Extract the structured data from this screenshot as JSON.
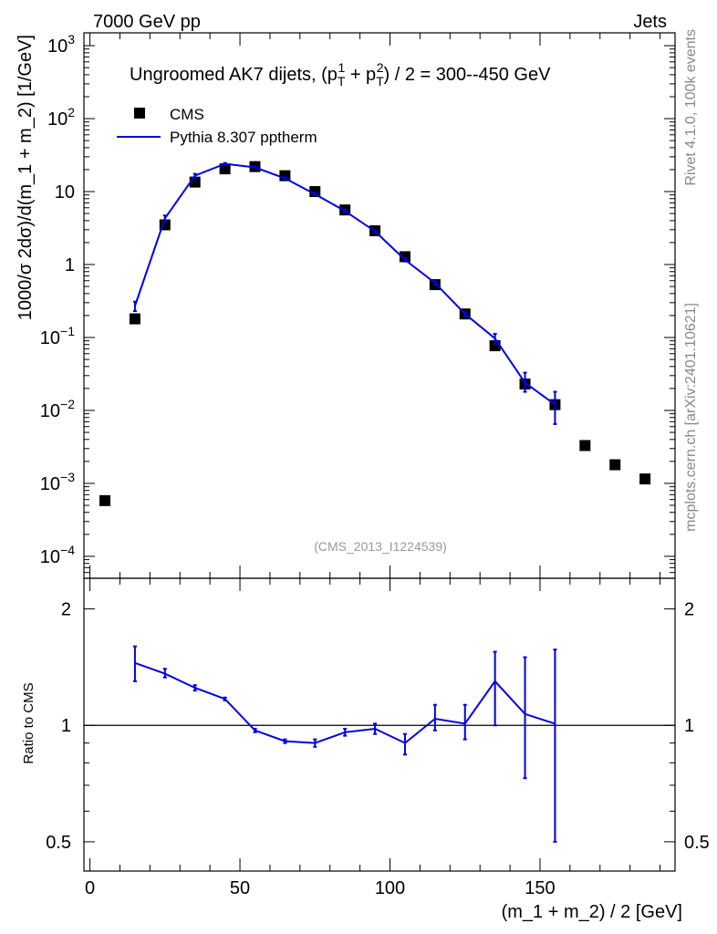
{
  "header": {
    "energy": "7000 GeV pp",
    "category": "Jets"
  },
  "side": {
    "rivet": "Rivet 4.1.0,  100k events",
    "source": "mcplots.cern.ch [arXiv:2401.10621]"
  },
  "chart_data": [
    {
      "type": "scatter",
      "panel": "main",
      "title": "Ungroomed AK7 dijets, (p_T^1 + p_T^2) / 2 = 300--450 GeV",
      "title_prefix": "Ungroomed AK7 dijets, (p",
      "title_sub1": "T",
      "title_sup1": "1",
      "title_mid": " + p",
      "title_sub2": "T",
      "title_sup2": "2",
      "title_suffix": ") / 2 = 300--450 GeV",
      "ylabel": "1000/σ   2dσ)/d(m_1 + m_2) [1/GeV]",
      "yscale": "log",
      "ylim": [
        5e-05,
        1500
      ],
      "xlim": [
        -2,
        195
      ],
      "analysis_id": "(CMS_2013_I1224539)",
      "legend": [
        "CMS",
        "Pythia 8.307 pptherm"
      ],
      "y_ticks": [
        {
          "value": 0.0001,
          "base": "10",
          "exp": "−4"
        },
        {
          "value": 0.001,
          "base": "10",
          "exp": "−3"
        },
        {
          "value": 0.01,
          "base": "10",
          "exp": "−2"
        },
        {
          "value": 0.1,
          "base": "10",
          "exp": "−1"
        },
        {
          "value": 1,
          "base": "1",
          "exp": ""
        },
        {
          "value": 10,
          "base": "10",
          "exp": ""
        },
        {
          "value": 100,
          "base": "10",
          "exp": "2"
        },
        {
          "value": 1000,
          "base": "10",
          "exp": "3"
        }
      ],
      "series": [
        {
          "name": "CMS",
          "x": [
            5,
            15,
            25,
            35,
            45,
            55,
            65,
            75,
            85,
            95,
            105,
            115,
            125,
            135,
            145,
            155,
            165,
            175,
            185
          ],
          "y": [
            0.00058,
            0.18,
            3.5,
            13.5,
            20.5,
            22,
            16.5,
            10,
            5.6,
            2.9,
            1.28,
            0.53,
            0.21,
            0.077,
            0.023,
            0.012,
            0.0033,
            0.0018,
            0.00115
          ]
        },
        {
          "name": "Pythia 8.307 pptherm",
          "x": [
            15,
            25,
            35,
            45,
            55,
            65,
            75,
            85,
            95,
            105,
            115,
            125,
            135,
            145,
            155
          ],
          "y": [
            0.27,
            4.3,
            16.5,
            24,
            21.5,
            15.2,
            9.2,
            5.4,
            2.85,
            1.16,
            0.56,
            0.21,
            0.097,
            0.024,
            0.012
          ],
          "err_lo": [
            0.23,
            3.9,
            15.5,
            23.3,
            21.0,
            14.8,
            8.9,
            5.2,
            2.75,
            1.1,
            0.53,
            0.195,
            0.082,
            0.018,
            0.0065
          ],
          "err_hi": [
            0.31,
            4.7,
            17.5,
            24.7,
            22.0,
            15.6,
            9.5,
            5.6,
            2.95,
            1.22,
            0.59,
            0.225,
            0.112,
            0.033,
            0.018
          ]
        }
      ]
    },
    {
      "type": "line",
      "panel": "ratio",
      "ylabel": "Ratio to CMS",
      "xlabel": "(m_1 + m_2) / 2 [GeV]",
      "yscale": "log",
      "ylim": [
        0.42,
        2.4
      ],
      "xlim": [
        -2,
        195
      ],
      "reference_line": 1,
      "x_ticks": [
        0,
        50,
        100,
        150
      ],
      "y_ticks": [
        0.5,
        1,
        2
      ],
      "series": [
        {
          "name": "Pythia 8.307 pptherm",
          "x": [
            15,
            25,
            35,
            45,
            55,
            65,
            75,
            85,
            95,
            105,
            115,
            125,
            135,
            145,
            155
          ],
          "y": [
            1.45,
            1.36,
            1.25,
            1.17,
            0.97,
            0.91,
            0.9,
            0.96,
            0.98,
            0.9,
            1.04,
            1.01,
            1.3,
            1.07,
            1.01
          ],
          "err_lo": [
            1.3,
            1.33,
            1.23,
            1.16,
            0.96,
            0.9,
            0.88,
            0.94,
            0.95,
            0.84,
            0.97,
            0.92,
            1.0,
            0.73,
            0.5
          ],
          "err_hi": [
            1.6,
            1.4,
            1.27,
            1.18,
            0.98,
            0.92,
            0.92,
            0.98,
            1.01,
            0.95,
            1.13,
            1.13,
            1.55,
            1.5,
            1.57
          ]
        }
      ]
    }
  ]
}
